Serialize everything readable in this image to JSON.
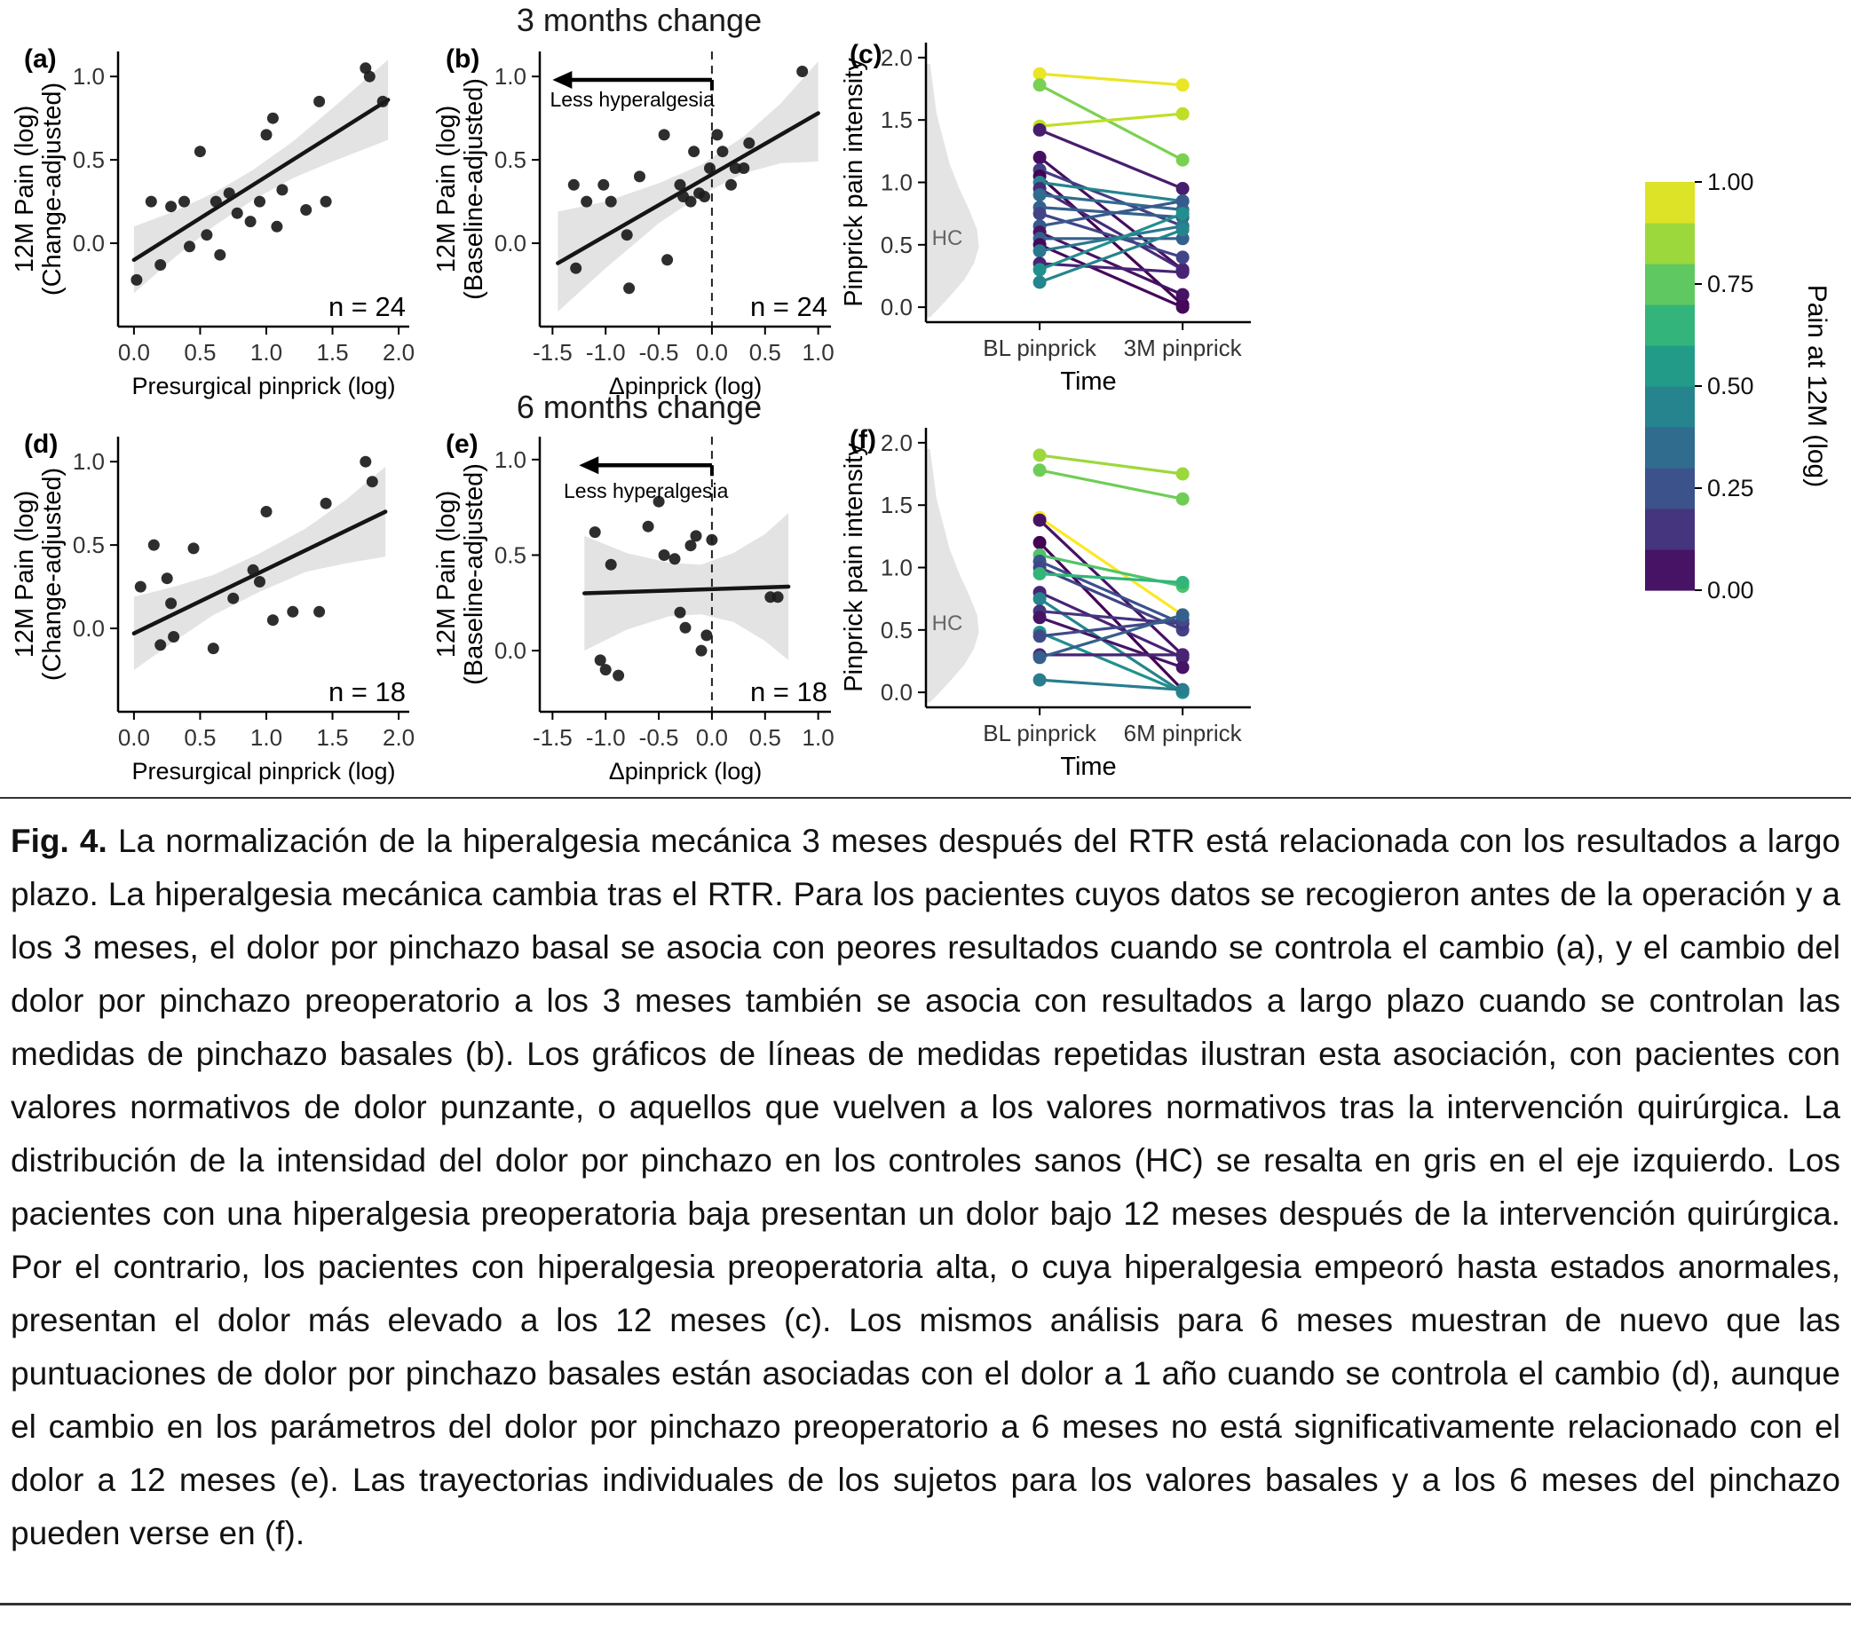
{
  "titles": {
    "row_top": "3 months change",
    "row_bottom": "6 months change"
  },
  "caption": {
    "label": "Fig. 4.",
    "text": "La normalización de la hiperalgesia mecánica 3 meses después del RTR está relacionada con los resultados a largo plazo. La hiperalgesia mecánica cambia tras el RTR. Para los pacientes cuyos datos se recogieron antes de la operación y a los 3 meses, el dolor por pinchazo basal se asocia con peores resultados cuando se controla el cambio (a), y el cambio del dolor por pinchazo preoperatorio a los 3 meses también se asocia con resultados a largo plazo cuando se controlan las medidas de pinchazo basales (b). Los gráficos de líneas de medidas repetidas ilustran esta asociación, con pacientes con valores normativos de dolor punzante, o aquellos que vuelven a los valores normativos tras la intervención quirúrgica. La distribución de la intensidad del dolor por pinchazo en los controles sanos (HC) se resalta en gris en el eje izquierdo. Los pacientes con una hiperalgesia preoperatoria baja presentan un dolor bajo 12 meses después de la intervención quirúrgica. Por el contrario, los pacientes con hiperalgesia preoperatoria alta, o cuya hiperalgesia empeoró hasta estados anormales, presentan el dolor más elevado a los 12 meses (c). Los mismos análisis para 6 meses muestran de nuevo que las puntuaciones de dolor por pinchazo basales están asociadas con el dolor a 1 año cuando se controla el cambio (d), aunque el cambio en los parámetros del dolor por pinchazo preoperatorio a 6 meses no está significativamente relacionado con el dolor a 12 meses (e). Las trayectorias individuales de los sujetos para los valores basales y a los 6 meses del pinchazo pueden verse en (f)."
  },
  "colorbar": {
    "title": "Pain at 12M (log)",
    "tick_labels": [
      "1.00",
      "0.75",
      "0.50",
      "0.25",
      "0.00"
    ],
    "tick_values": [
      1.0,
      0.75,
      0.5,
      0.25,
      0.0
    ],
    "steps": 10,
    "palette": [
      "#440154",
      "#482475",
      "#414487",
      "#35608d",
      "#2a788e",
      "#21908d",
      "#22a884",
      "#44bf70",
      "#7ad151",
      "#bddf26",
      "#fde725"
    ]
  },
  "hc_violin": {
    "y": [
      1.95,
      1.75,
      1.55,
      1.35,
      1.15,
      0.95,
      0.78,
      0.62,
      0.48,
      0.35,
      0.22,
      0.1,
      0.0,
      -0.08
    ],
    "w": [
      0.01,
      0.02,
      0.03,
      0.05,
      0.07,
      0.1,
      0.13,
      0.155,
      0.16,
      0.145,
      0.115,
      0.075,
      0.04,
      0.01
    ]
  },
  "chart_data": [
    {
      "id": "a",
      "panel_label": "(a)",
      "type": "scatter",
      "xlabel": "Presurgical pinprick (log)",
      "ylabel_lines": [
        "12M Pain (log)",
        "(Change-adjusted)"
      ],
      "xlim": [
        -0.12,
        2.08
      ],
      "ylim": [
        -0.5,
        1.15
      ],
      "xticks": [
        0.0,
        0.5,
        1.0,
        1.5,
        2.0
      ],
      "xtick_labels": [
        "0.0",
        "0.5",
        "1.0",
        "1.5",
        "2.0"
      ],
      "yticks": [
        0.0,
        0.5,
        1.0
      ],
      "ytick_labels": [
        "0.0",
        "0.5",
        "1.0"
      ],
      "annotation": "n = 24",
      "points": [
        [
          0.02,
          -0.22
        ],
        [
          0.13,
          0.25
        ],
        [
          0.2,
          -0.13
        ],
        [
          0.28,
          0.22
        ],
        [
          0.38,
          0.25
        ],
        [
          0.42,
          -0.02
        ],
        [
          0.5,
          0.55
        ],
        [
          0.55,
          0.05
        ],
        [
          0.62,
          0.25
        ],
        [
          0.65,
          -0.07
        ],
        [
          0.72,
          0.3
        ],
        [
          0.78,
          0.18
        ],
        [
          0.88,
          0.13
        ],
        [
          0.95,
          0.25
        ],
        [
          1.0,
          0.65
        ],
        [
          1.05,
          0.75
        ],
        [
          1.08,
          0.1
        ],
        [
          1.12,
          0.32
        ],
        [
          1.3,
          0.2
        ],
        [
          1.4,
          0.85
        ],
        [
          1.45,
          0.25
        ],
        [
          1.75,
          1.05
        ],
        [
          1.78,
          1.0
        ],
        [
          1.88,
          0.85
        ]
      ],
      "fit": {
        "x": [
          0.0,
          1.92
        ],
        "y": [
          -0.1,
          0.86
        ]
      },
      "ci": {
        "x": [
          0,
          0.3,
          0.6,
          0.9,
          1.2,
          1.5,
          1.92
        ],
        "upper": [
          0.1,
          0.19,
          0.3,
          0.44,
          0.61,
          0.81,
          1.1
        ],
        "lower": [
          -0.3,
          -0.09,
          0.1,
          0.26,
          0.39,
          0.49,
          0.62
        ]
      }
    },
    {
      "id": "b",
      "panel_label": "(b)",
      "type": "scatter",
      "xlabel": "Δpinprick (log)",
      "ylabel_lines": [
        "12M Pain (log)",
        "(Baseline-adjusted)"
      ],
      "xlim": [
        -1.62,
        1.12
      ],
      "ylim": [
        -0.5,
        1.15
      ],
      "xticks": [
        -1.5,
        -1.0,
        -0.5,
        0.0,
        0.5,
        1.0
      ],
      "xtick_labels": [
        "-1.5",
        "-1.0",
        "-0.5",
        "0.0",
        "0.5",
        "1.0"
      ],
      "yticks": [
        0.0,
        0.5,
        1.0
      ],
      "ytick_labels": [
        "0.0",
        "0.5",
        "1.0"
      ],
      "annotation": "n = 24",
      "vline": 0.0,
      "arrow": {
        "y": 0.98,
        "x_from": 0.0,
        "x_to": -1.5,
        "label": "Less hyperalgesia",
        "label_x": -0.75,
        "label_y": 0.82
      },
      "points": [
        [
          -1.3,
          0.35
        ],
        [
          -1.28,
          -0.15
        ],
        [
          -1.18,
          0.25
        ],
        [
          -1.02,
          0.35
        ],
        [
          -0.95,
          0.25
        ],
        [
          -0.8,
          0.05
        ],
        [
          -0.78,
          -0.27
        ],
        [
          -0.68,
          0.4
        ],
        [
          -0.45,
          0.65
        ],
        [
          -0.42,
          -0.1
        ],
        [
          -0.3,
          0.35
        ],
        [
          -0.27,
          0.28
        ],
        [
          -0.2,
          0.25
        ],
        [
          -0.17,
          0.55
        ],
        [
          -0.12,
          0.3
        ],
        [
          -0.07,
          0.28
        ],
        [
          -0.02,
          0.45
        ],
        [
          0.05,
          0.65
        ],
        [
          0.1,
          0.55
        ],
        [
          0.18,
          0.35
        ],
        [
          0.22,
          0.45
        ],
        [
          0.3,
          0.45
        ],
        [
          0.35,
          0.6
        ],
        [
          0.85,
          1.03
        ]
      ],
      "fit": {
        "x": [
          -1.45,
          1.0
        ],
        "y": [
          -0.12,
          0.78
        ]
      },
      "ci": {
        "x": [
          -1.45,
          -1.0,
          -0.5,
          -0.1,
          0.3,
          0.65,
          1.0
        ],
        "upper": [
          0.19,
          0.25,
          0.36,
          0.47,
          0.64,
          0.84,
          1.09
        ],
        "lower": [
          -0.41,
          -0.15,
          0.12,
          0.29,
          0.42,
          0.48,
          0.49
        ]
      }
    },
    {
      "id": "c",
      "panel_label": "(c)",
      "type": "slope",
      "ylabel": "Pinprick pain intensity",
      "xlabel": "Time",
      "categories": [
        "BL pinprick",
        "3M pinprick"
      ],
      "ylim": [
        -0.12,
        2.12
      ],
      "yticks": [
        0.0,
        0.5,
        1.0,
        1.5,
        2.0
      ],
      "ytick_labels": [
        "0.0",
        "0.5",
        "1.0",
        "1.5",
        "2.0"
      ],
      "hc_label": "HC",
      "pairs": [
        [
          1.87,
          1.78,
          0.97
        ],
        [
          1.78,
          1.18,
          0.8
        ],
        [
          1.45,
          1.55,
          0.9
        ],
        [
          1.42,
          0.95,
          0.08
        ],
        [
          1.2,
          0.3,
          0.04
        ],
        [
          1.1,
          0.65,
          0.18
        ],
        [
          1.05,
          0.02,
          0.0
        ],
        [
          1.0,
          0.85,
          0.45
        ],
        [
          0.95,
          0.3,
          0.12
        ],
        [
          0.9,
          0.78,
          0.35
        ],
        [
          0.8,
          0.72,
          0.3
        ],
        [
          0.75,
          0.4,
          0.2
        ],
        [
          0.65,
          0.85,
          0.28
        ],
        [
          0.6,
          0.1,
          0.05
        ],
        [
          0.55,
          0.55,
          0.3
        ],
        [
          0.5,
          0.0,
          0.02
        ],
        [
          0.45,
          0.65,
          0.4
        ],
        [
          0.35,
          0.28,
          0.1
        ],
        [
          0.3,
          0.75,
          0.5
        ],
        [
          0.2,
          0.62,
          0.45
        ]
      ]
    },
    {
      "id": "d",
      "panel_label": "(d)",
      "type": "scatter",
      "xlabel": "Presurgical pinprick (log)",
      "ylabel_lines": [
        "12M Pain (log)",
        "(Change-adjusted)"
      ],
      "xlim": [
        -0.12,
        2.08
      ],
      "ylim": [
        -0.5,
        1.15
      ],
      "xticks": [
        0.0,
        0.5,
        1.0,
        1.5,
        2.0
      ],
      "xtick_labels": [
        "0.0",
        "0.5",
        "1.0",
        "1.5",
        "2.0"
      ],
      "yticks": [
        0.0,
        0.5,
        1.0
      ],
      "ytick_labels": [
        "0.0",
        "0.5",
        "1.0"
      ],
      "annotation": "n = 18",
      "points": [
        [
          0.05,
          0.25
        ],
        [
          0.15,
          0.5
        ],
        [
          0.2,
          -0.1
        ],
        [
          0.25,
          0.3
        ],
        [
          0.28,
          0.15
        ],
        [
          0.3,
          -0.05
        ],
        [
          0.45,
          0.48
        ],
        [
          0.6,
          -0.12
        ],
        [
          0.75,
          0.18
        ],
        [
          0.9,
          0.35
        ],
        [
          0.95,
          0.28
        ],
        [
          1.0,
          0.7
        ],
        [
          1.05,
          0.05
        ],
        [
          1.2,
          0.1
        ],
        [
          1.4,
          0.1
        ],
        [
          1.45,
          0.75
        ],
        [
          1.75,
          1.0
        ],
        [
          1.8,
          0.88
        ]
      ],
      "fit": {
        "x": [
          0.0,
          1.9
        ],
        "y": [
          -0.03,
          0.7
        ]
      },
      "ci": {
        "x": [
          0,
          0.3,
          0.6,
          0.95,
          1.3,
          1.6,
          1.9
        ],
        "upper": [
          0.19,
          0.25,
          0.32,
          0.45,
          0.6,
          0.77,
          0.97
        ],
        "lower": [
          -0.25,
          -0.08,
          0.08,
          0.22,
          0.34,
          0.39,
          0.43
        ]
      }
    },
    {
      "id": "e",
      "panel_label": "(e)",
      "type": "scatter",
      "xlabel": "Δpinprick (log)",
      "ylabel_lines": [
        "12M Pain (log)",
        "(Baseline-adjusted)"
      ],
      "xlim": [
        -1.62,
        1.12
      ],
      "ylim": [
        -0.32,
        1.12
      ],
      "xticks": [
        -1.5,
        -1.0,
        -0.5,
        0.0,
        0.5,
        1.0
      ],
      "xtick_labels": [
        "-1.5",
        "-1.0",
        "-0.5",
        "0.0",
        "0.5",
        "1.0"
      ],
      "yticks": [
        0.0,
        0.5,
        1.0
      ],
      "ytick_labels": [
        "0.0",
        "0.5",
        "1.0"
      ],
      "annotation": "n = 18",
      "vline": 0.0,
      "arrow": {
        "y": 0.97,
        "x_from": 0.0,
        "x_to": -1.25,
        "label": "Less hyperalgesia",
        "label_x": -0.62,
        "label_y": 0.8
      },
      "points": [
        [
          -1.1,
          0.62
        ],
        [
          -1.05,
          -0.05
        ],
        [
          -1.0,
          -0.1
        ],
        [
          -0.95,
          0.45
        ],
        [
          -0.88,
          -0.13
        ],
        [
          -0.6,
          0.65
        ],
        [
          -0.5,
          0.78
        ],
        [
          -0.45,
          0.5
        ],
        [
          -0.35,
          0.48
        ],
        [
          -0.3,
          0.2
        ],
        [
          -0.25,
          0.12
        ],
        [
          -0.2,
          0.55
        ],
        [
          -0.15,
          0.6
        ],
        [
          -0.1,
          0.0
        ],
        [
          -0.05,
          0.08
        ],
        [
          0.0,
          0.58
        ],
        [
          0.55,
          0.28
        ],
        [
          0.62,
          0.28
        ]
      ],
      "fit": {
        "x": [
          -1.2,
          0.72
        ],
        "y": [
          0.3,
          0.335
        ]
      },
      "ci": {
        "x": [
          -1.2,
          -0.8,
          -0.4,
          -0.1,
          0.2,
          0.5,
          0.72
        ],
        "upper": [
          0.6,
          0.51,
          0.46,
          0.45,
          0.51,
          0.61,
          0.72
        ],
        "lower": [
          0.0,
          0.11,
          0.18,
          0.19,
          0.15,
          0.05,
          -0.05
        ]
      }
    },
    {
      "id": "f",
      "panel_label": "(f)",
      "type": "slope",
      "ylabel": "Pinprick pain intensity",
      "xlabel": "Time",
      "categories": [
        "BL pinprick",
        "6M pinprick"
      ],
      "ylim": [
        -0.12,
        2.12
      ],
      "yticks": [
        0.0,
        0.5,
        1.0,
        1.5,
        2.0
      ],
      "ytick_labels": [
        "0.0",
        "0.5",
        "1.0",
        "1.5",
        "2.0"
      ],
      "hc_label": "HC",
      "pairs": [
        [
          1.9,
          1.75,
          0.85
        ],
        [
          1.78,
          1.55,
          0.78
        ],
        [
          1.4,
          0.62,
          1.0
        ],
        [
          1.38,
          0.3,
          0.05
        ],
        [
          1.2,
          0.02,
          0.0
        ],
        [
          1.1,
          0.85,
          0.72
        ],
        [
          1.05,
          0.55,
          0.25
        ],
        [
          1.0,
          0.5,
          0.2
        ],
        [
          0.95,
          0.88,
          0.65
        ],
        [
          0.8,
          0.28,
          0.1
        ],
        [
          0.75,
          0.0,
          0.45
        ],
        [
          0.65,
          0.55,
          0.15
        ],
        [
          0.6,
          0.2,
          0.05
        ],
        [
          0.48,
          0.0,
          0.5
        ],
        [
          0.45,
          0.58,
          0.22
        ],
        [
          0.3,
          0.3,
          0.1
        ],
        [
          0.28,
          0.62,
          0.3
        ],
        [
          0.1,
          0.02,
          0.42
        ]
      ]
    }
  ]
}
